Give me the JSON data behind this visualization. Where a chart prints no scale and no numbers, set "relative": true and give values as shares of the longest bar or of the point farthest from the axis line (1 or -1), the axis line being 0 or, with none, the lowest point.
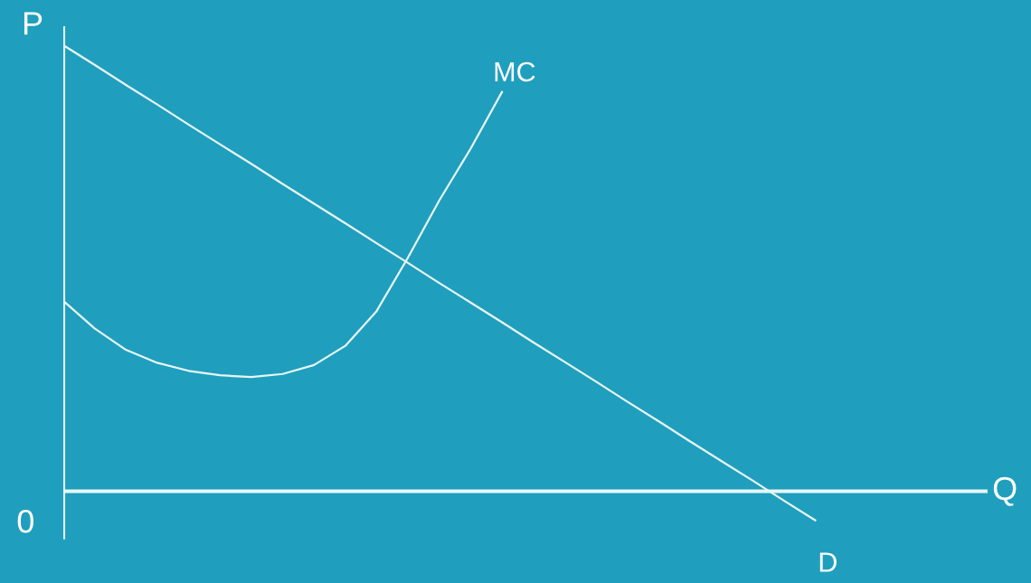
{
  "chart_data": {
    "type": "line",
    "relative": true,
    "xlabel": "Q",
    "ylabel": "P",
    "annotations": [
      "0"
    ],
    "legend": false,
    "marker": "none",
    "line_style": "solid",
    "categories": [
      null,
      null,
      null,
      null,
      null,
      null,
      null,
      null,
      null,
      null,
      null,
      null,
      null,
      null,
      null,
      null,
      null,
      null,
      null,
      null,
      null,
      null,
      null,
      null,
      null,
      null,
      null,
      null,
      null,
      null
    ],
    "series": [
      {
        "name": "D",
        "color": "#e8f6f8",
        "values": [
          1,
          0.956,
          0.911,
          0.867,
          0.822,
          0.778,
          0.734,
          0.689,
          0.645,
          0.601,
          0.556,
          0.512,
          0.467,
          0.423,
          0.379,
          0.334,
          0.29,
          0.246,
          0.201,
          0.157,
          0.112,
          0.068,
          0.024,
          -0.021,
          -0.065,
          null,
          null,
          null,
          null,
          null
        ]
      },
      {
        "name": "MC",
        "color": "#e8f6f8",
        "values": [
          0.427,
          0.365,
          0.317,
          0.288,
          0.27,
          0.26,
          0.256,
          0.263,
          0.283,
          0.326,
          0.404,
          0.524,
          0.652,
          0.768,
          0.895,
          null,
          null,
          null,
          null,
          null,
          null,
          null,
          null,
          null,
          null,
          null,
          null,
          null,
          null,
          null
        ]
      }
    ]
  }
}
